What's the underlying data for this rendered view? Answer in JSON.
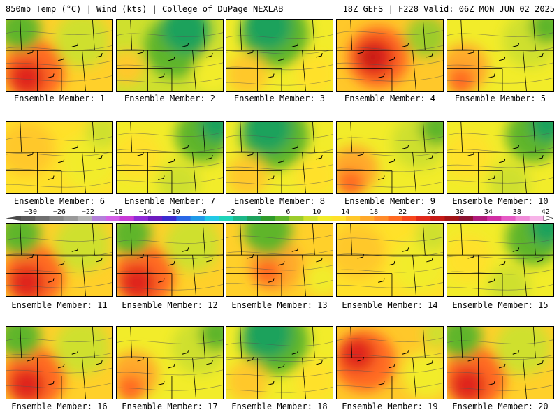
{
  "header": {
    "left": "850mb Temp (°C) | Wind (kts) | College of DuPage NEXLAB",
    "right": "18Z GEFS | F228 Valid: 06Z MON JUN 02 2025"
  },
  "colorbar": {
    "ticks": [
      "-30",
      "-26",
      "-22",
      "-18",
      "-14",
      "-10",
      "-6",
      "-2",
      "2",
      "6",
      "10",
      "14",
      "18",
      "22",
      "26",
      "30",
      "34",
      "38",
      "42"
    ],
    "colors": [
      "#5a5a5a",
      "#6f6f6f",
      "#848484",
      "#999999",
      "#b4b4b4",
      "#b37fd9",
      "#d35fe6",
      "#c73ad6",
      "#8f2ad6",
      "#6c1bbf",
      "#3a2bd1",
      "#2a68e6",
      "#1f9ae8",
      "#22c9e6",
      "#1fd4b9",
      "#1cb889",
      "#1da25c",
      "#2f9b2a",
      "#5fb52a",
      "#9ccc2c",
      "#cfe02e",
      "#f2ec2a",
      "#ffe12a",
      "#ffc82a",
      "#ffa92a",
      "#ff8b2a",
      "#ff6a22",
      "#f7461c",
      "#e0281a",
      "#c51a16",
      "#a31417",
      "#8a1230",
      "#b01a7a",
      "#d12ea3",
      "#e65ac5",
      "#f08ad8",
      "#f7b4e8"
    ]
  },
  "panels": [
    {
      "label": "Ensemble Member: 1",
      "scheme": "hot-south"
    },
    {
      "label": "Ensemble Member: 2",
      "scheme": "cool-center"
    },
    {
      "label": "Ensemble Member: 3",
      "scheme": "cool-north"
    },
    {
      "label": "Ensemble Member: 4",
      "scheme": "hot-center"
    },
    {
      "label": "Ensemble Member: 5",
      "scheme": "warm-west"
    },
    {
      "label": "Ensemble Member: 6",
      "scheme": "warm"
    },
    {
      "label": "Ensemble Member: 7",
      "scheme": "cool-ne"
    },
    {
      "label": "Ensemble Member: 8",
      "scheme": "cool-north"
    },
    {
      "label": "Ensemble Member: 9",
      "scheme": "warm-west"
    },
    {
      "label": "Ensemble Member: 10",
      "scheme": "cool-ne"
    },
    {
      "label": "Ensemble Member: 11",
      "scheme": "hot-south"
    },
    {
      "label": "Ensemble Member: 12",
      "scheme": "hot-south"
    },
    {
      "label": "Ensemble Member: 13",
      "scheme": "warm-center"
    },
    {
      "label": "Ensemble Member: 14",
      "scheme": "warm"
    },
    {
      "label": "Ensemble Member: 15",
      "scheme": "cool-ne"
    },
    {
      "label": "Ensemble Member: 16",
      "scheme": "hot-south"
    },
    {
      "label": "Ensemble Member: 17",
      "scheme": "warm-west"
    },
    {
      "label": "Ensemble Member: 18",
      "scheme": "cool-north"
    },
    {
      "label": "Ensemble Member: 19",
      "scheme": "hot-west"
    },
    {
      "label": "Ensemble Member: 20",
      "scheme": "hot-south"
    }
  ]
}
